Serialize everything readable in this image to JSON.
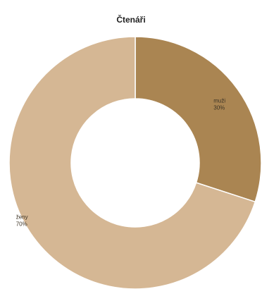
{
  "chart_data": {
    "type": "pie",
    "variant": "donut",
    "title": "Čtenáři",
    "slices": [
      {
        "name": "muži",
        "value": 30,
        "label": "30%",
        "color": "#aa8552"
      },
      {
        "name": "ženy",
        "value": 70,
        "label": "70%",
        "color": "#d5b794"
      }
    ],
    "start_angle_deg": 0,
    "direction": "clockwise",
    "legend": "none",
    "slice_border_color": "#ffffff"
  }
}
